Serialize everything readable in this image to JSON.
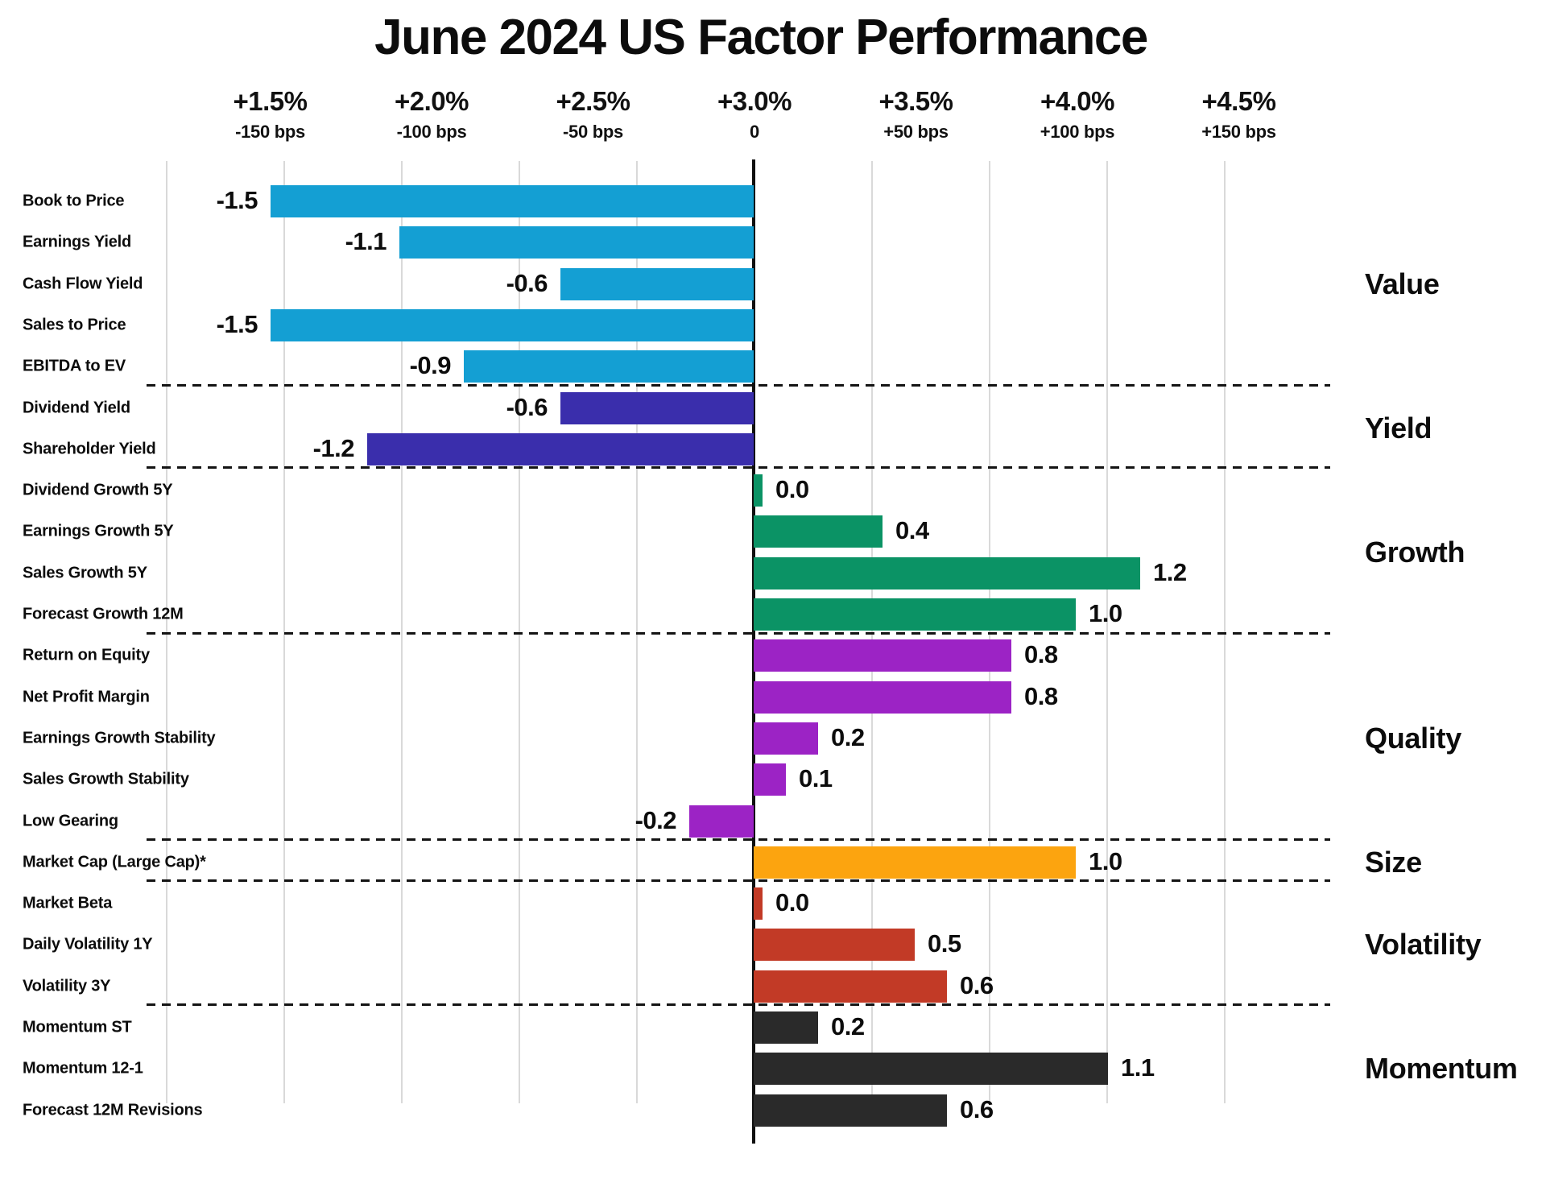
{
  "title": "June 2024 US Factor Performance",
  "colors": {
    "value": "#149FD3",
    "yield": "#3A2EAC",
    "growth": "#0B9365",
    "quality": "#9C23C5",
    "size": "#FCA40F",
    "volatility": "#C23A26",
    "momentum": "#2A2A2A",
    "gridline": "#d9d9d9",
    "axis_line": "#101010",
    "text": "#0c0c0c",
    "background": "#ffffff"
  },
  "chart_data": {
    "type": "bar",
    "orientation": "horizontal",
    "title": "June 2024 US Factor Performance",
    "x_axis": {
      "unit": "percent (with basis-point equivalents)",
      "zero_at_pct": "+3.0%",
      "xlim": [
        -1.9,
        2.45
      ],
      "grid": true,
      "ticks": [
        {
          "pct": "+1.5%",
          "bps": "-150 bps",
          "value": -1.5
        },
        {
          "pct": "+2.0%",
          "bps": "-100 bps",
          "value": -1.0
        },
        {
          "pct": "+2.5%",
          "bps": "-50 bps",
          "value": -0.5
        },
        {
          "pct": "+3.0%",
          "bps": "0",
          "value": 0.0
        },
        {
          "pct": "+3.5%",
          "bps": "+50 bps",
          "value": 0.5
        },
        {
          "pct": "+4.0%",
          "bps": "+100 bps",
          "value": 1.0
        },
        {
          "pct": "+4.5%",
          "bps": "+150 bps",
          "value": 1.5
        }
      ]
    },
    "groups": [
      {
        "name": "Value",
        "color_key": "value",
        "rows": [
          {
            "label": "Book to Price",
            "value": -1.5,
            "value_label": "-1.5"
          },
          {
            "label": "Earnings Yield",
            "value": -1.1,
            "value_label": "-1.1"
          },
          {
            "label": "Cash Flow Yield",
            "value": -0.6,
            "value_label": "-0.6"
          },
          {
            "label": "Sales to Price",
            "value": -1.5,
            "value_label": "-1.5"
          },
          {
            "label": "EBITDA to EV",
            "value": -0.9,
            "value_label": "-0.9"
          }
        ]
      },
      {
        "name": "Yield",
        "color_key": "yield",
        "rows": [
          {
            "label": "Dividend Yield",
            "value": -0.6,
            "value_label": "-0.6"
          },
          {
            "label": "Shareholder Yield",
            "value": -1.2,
            "value_label": "-1.2"
          }
        ]
      },
      {
        "name": "Growth",
        "color_key": "growth",
        "rows": [
          {
            "label": "Dividend Growth 5Y",
            "value": 0.0,
            "value_label": "0.0"
          },
          {
            "label": "Earnings Growth 5Y",
            "value": 0.4,
            "value_label": "0.4"
          },
          {
            "label": "Sales Growth 5Y",
            "value": 1.2,
            "value_label": "1.2"
          },
          {
            "label": "Forecast Growth 12M",
            "value": 1.0,
            "value_label": "1.0"
          }
        ]
      },
      {
        "name": "Quality",
        "color_key": "quality",
        "rows": [
          {
            "label": "Return on Equity",
            "value": 0.8,
            "value_label": "0.8"
          },
          {
            "label": "Net Profit Margin",
            "value": 0.8,
            "value_label": "0.8"
          },
          {
            "label": "Earnings Growth Stability",
            "value": 0.2,
            "value_label": "0.2"
          },
          {
            "label": "Sales Growth Stability",
            "value": 0.1,
            "value_label": "0.1"
          },
          {
            "label": "Low Gearing",
            "value": -0.2,
            "value_label": "-0.2"
          }
        ]
      },
      {
        "name": "Size",
        "color_key": "size",
        "rows": [
          {
            "label": "Market Cap (Large Cap)*",
            "value": 1.0,
            "value_label": "1.0"
          }
        ]
      },
      {
        "name": "Volatility",
        "color_key": "volatility",
        "rows": [
          {
            "label": "Market Beta",
            "value": 0.0,
            "value_label": "0.0"
          },
          {
            "label": "Daily Volatility 1Y",
            "value": 0.5,
            "value_label": "0.5"
          },
          {
            "label": "Volatility 3Y",
            "value": 0.6,
            "value_label": "0.6"
          }
        ]
      },
      {
        "name": "Momentum",
        "color_key": "momentum",
        "rows": [
          {
            "label": "Momentum ST",
            "value": 0.2,
            "value_label": "0.2"
          },
          {
            "label": "Momentum 12-1",
            "value": 1.1,
            "value_label": "1.1"
          },
          {
            "label": "Forecast 12M Revisions",
            "value": 0.6,
            "value_label": "0.6"
          }
        ]
      }
    ]
  }
}
